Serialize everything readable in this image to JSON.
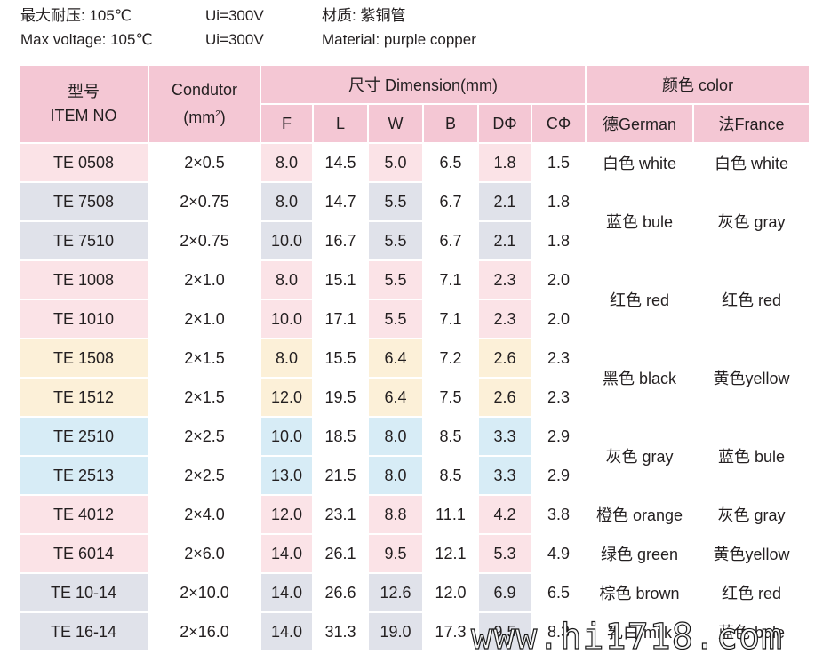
{
  "specs": {
    "row1": {
      "temp": "最大耐压: 105℃",
      "voltage": "Ui=300V",
      "material": "材质: 紫铜管"
    },
    "row2": {
      "temp": "Max voltage: 105℃",
      "voltage": "Ui=300V",
      "material": "Material: purple copper"
    }
  },
  "table": {
    "header": {
      "item_cn": "型号",
      "item_en": "ITEM NO",
      "conductor": "Condutor",
      "conductor_unit_open": "(mm",
      "conductor_unit_sup": "2",
      "conductor_unit_close": ")",
      "dimension": "尺寸  Dimension(mm)",
      "color": "颜色 color",
      "dims": [
        "F",
        "L",
        "W",
        "B",
        "DΦ",
        "CΦ"
      ],
      "german": "德German",
      "france": "法France"
    },
    "rows": [
      {
        "item": "TE  0508",
        "conductor": "2×0.5",
        "F": "8.0",
        "L": "14.5",
        "W": "5.0",
        "B": "6.5",
        "D": "1.8",
        "C": "1.5"
      },
      {
        "item": "TE  7508",
        "conductor": "2×0.75",
        "F": "8.0",
        "L": "14.7",
        "W": "5.5",
        "B": "6.7",
        "D": "2.1",
        "C": "1.8"
      },
      {
        "item": "TE  7510",
        "conductor": "2×0.75",
        "F": "10.0",
        "L": "16.7",
        "W": "5.5",
        "B": "6.7",
        "D": "2.1",
        "C": "1.8"
      },
      {
        "item": "TE  1008",
        "conductor": "2×1.0",
        "F": "8.0",
        "L": "15.1",
        "W": "5.5",
        "B": "7.1",
        "D": "2.3",
        "C": "2.0"
      },
      {
        "item": "TE  1010",
        "conductor": "2×1.0",
        "F": "10.0",
        "L": "17.1",
        "W": "5.5",
        "B": "7.1",
        "D": "2.3",
        "C": "2.0"
      },
      {
        "item": "TE  1508",
        "conductor": "2×1.5",
        "F": "8.0",
        "L": "15.5",
        "W": "6.4",
        "B": "7.2",
        "D": "2.6",
        "C": "2.3"
      },
      {
        "item": "TE  1512",
        "conductor": "2×1.5",
        "F": "12.0",
        "L": "19.5",
        "W": "6.4",
        "B": "7.5",
        "D": "2.6",
        "C": "2.3"
      },
      {
        "item": "TE  2510",
        "conductor": "2×2.5",
        "F": "10.0",
        "L": "18.5",
        "W": "8.0",
        "B": "8.5",
        "D": "3.3",
        "C": "2.9"
      },
      {
        "item": "TE  2513",
        "conductor": "2×2.5",
        "F": "13.0",
        "L": "21.5",
        "W": "8.0",
        "B": "8.5",
        "D": "3.3",
        "C": "2.9"
      },
      {
        "item": "TE  4012",
        "conductor": "2×4.0",
        "F": "12.0",
        "L": "23.1",
        "W": "8.8",
        "B": "11.1",
        "D": "4.2",
        "C": "3.8"
      },
      {
        "item": "TE  6014",
        "conductor": "2×6.0",
        "F": "14.0",
        "L": "26.1",
        "W": "9.5",
        "B": "12.1",
        "D": "5.3",
        "C": "4.9"
      },
      {
        "item": "TE  10-14",
        "conductor": "2×10.0",
        "F": "14.0",
        "L": "26.6",
        "W": "12.6",
        "B": "12.0",
        "D": "6.9",
        "C": "6.5"
      },
      {
        "item": "TE  16-14",
        "conductor": "2×16.0",
        "F": "14.0",
        "L": "31.3",
        "W": "19.0",
        "B": "17.3",
        "D": "9.5",
        "C": "8.3"
      }
    ],
    "colors": [
      {
        "german": "白色 white",
        "france": "白色 white"
      },
      {
        "german": "蓝色 bule",
        "france": "灰色 gray"
      },
      {
        "german": "红色 red",
        "france": "红色 red"
      },
      {
        "german": "黑色 black",
        "france": "黄色yellow"
      },
      {
        "german": "灰色 gray",
        "france": "蓝色 bule"
      },
      {
        "german": "橙色 orange",
        "france": "灰色 gray"
      },
      {
        "german": "绿色 green",
        "france": "黄色yellow"
      },
      {
        "german": "棕色 brown",
        "france": "红色 red"
      },
      {
        "german": "乳白 milk",
        "france": "蓝色 bule"
      }
    ]
  },
  "watermark": "www.hi1718.com",
  "palette": {
    "header": "#f4c7d4",
    "pink": "#fbe3e7",
    "gray": "#e0e2ea",
    "cream": "#fcf0d8",
    "blue": "#d7ecf6"
  }
}
